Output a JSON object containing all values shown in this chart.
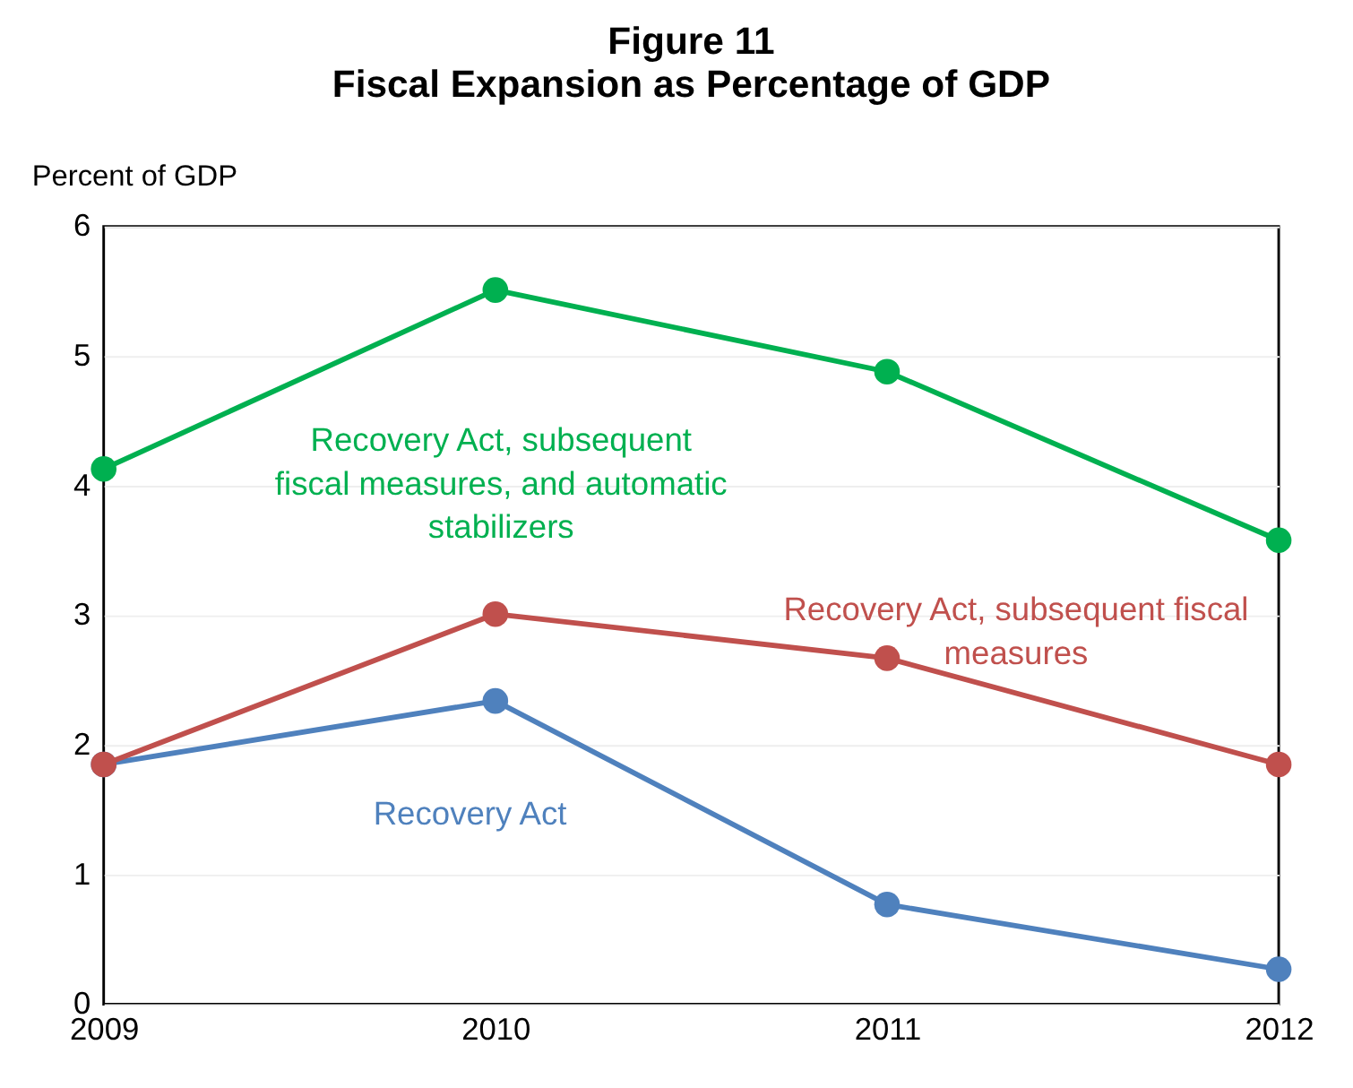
{
  "chart_data": {
    "type": "line",
    "title": "Figure 11",
    "subtitle": "Fiscal Expansion as Percentage of GDP",
    "ylabel": "Percent of GDP",
    "x": [
      2009,
      2010,
      2011,
      2012
    ],
    "series": [
      {
        "name": "Recovery Act",
        "color": "#4f81bd",
        "values": [
          1.85,
          2.34,
          0.77,
          0.27
        ]
      },
      {
        "name": "Recovery Act, subsequent fiscal measures",
        "color": "#c0504d",
        "values": [
          1.85,
          3.01,
          2.67,
          1.85
        ]
      },
      {
        "name": "Recovery Act, subsequent fiscal measures, and automatic stabilizers",
        "color": "#00b050",
        "values": [
          4.13,
          5.51,
          4.88,
          3.58
        ]
      }
    ],
    "xlim": [
      2009,
      2012
    ],
    "xticks": [
      2009,
      2010,
      2011,
      2012
    ],
    "ylim": [
      0,
      6
    ],
    "yticks": [
      0,
      1,
      2,
      3,
      4,
      5,
      6
    ],
    "grid": "y",
    "marker": "circle",
    "line_style": "solid",
    "legend": false
  }
}
